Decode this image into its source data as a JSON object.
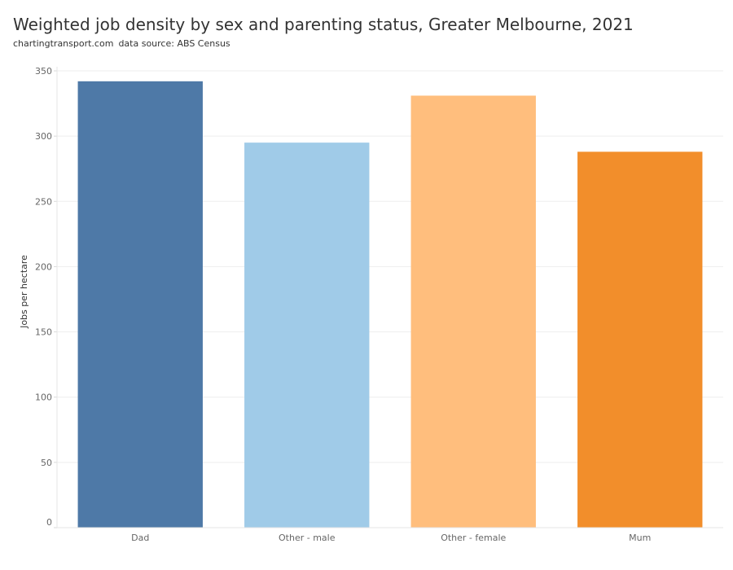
{
  "header": {
    "title": "Weighted job density by sex and parenting status, Greater Melbourne, 2021",
    "source_site": "chartingtransport.com",
    "source_note": "data source: ABS Census"
  },
  "chart_data": {
    "type": "bar",
    "title": "Weighted job density by sex and parenting status, Greater Melbourne, 2021",
    "xlabel": "",
    "ylabel": "Jobs per hectare",
    "categories": [
      "Dad",
      "Other - male",
      "Other - female",
      "Mum"
    ],
    "values": [
      342,
      295,
      331,
      288
    ],
    "colors": [
      "#4e79a7",
      "#a0cbe8",
      "#ffbe7d",
      "#f28e2b"
    ],
    "ylim": [
      0,
      350
    ],
    "yticks": [
      0,
      50,
      100,
      150,
      200,
      250,
      300,
      350
    ],
    "grid": true,
    "legend": "none"
  }
}
